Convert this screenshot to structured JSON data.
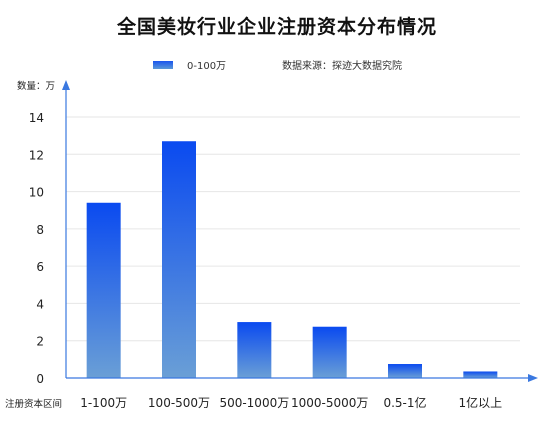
{
  "chart_data": {
    "type": "bar",
    "title": "全国美妆行业企业注册资本分布情况",
    "source": "数据来源：探迹大数据究院",
    "ylabel": "数量：万",
    "xlabel": "注册资本区间",
    "ylim": [
      0,
      14
    ],
    "yticks": [
      0,
      2,
      4,
      6,
      8,
      10,
      12,
      14
    ],
    "grid": true,
    "legend_position": "top-center",
    "categories": [
      "1-100万",
      "100-500万",
      "500-1000万",
      "1000-5000万",
      "0.5-1亿",
      "1亿以上"
    ],
    "series": [
      {
        "name": "0-100万",
        "values": [
          9.4,
          12.7,
          3.0,
          2.75,
          0.75,
          0.35
        ]
      }
    ],
    "colors": {
      "bar_top": "#0a4af0",
      "bar_bottom": "#6a9fd6",
      "axis": "#3a78e0",
      "grid": "#e6e6e6"
    }
  }
}
